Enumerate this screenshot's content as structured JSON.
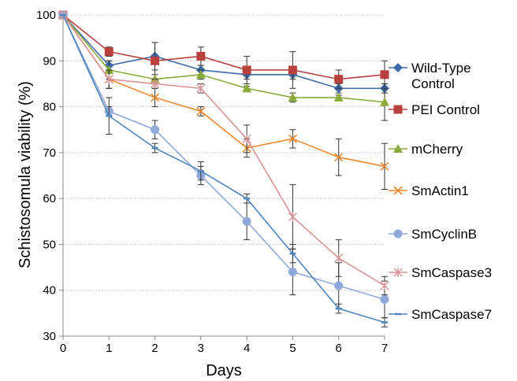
{
  "chart_data": {
    "type": "line",
    "title": "",
    "xlabel": "Days",
    "ylabel": "Schistosomula viability (%)",
    "x": [
      0,
      1,
      2,
      3,
      4,
      5,
      6,
      7
    ],
    "xlim": [
      0,
      7
    ],
    "ylim": [
      30,
      100
    ],
    "yticks": [
      30,
      40,
      50,
      60,
      70,
      80,
      90,
      100
    ],
    "grid": "horizontal dotted",
    "legend_position": "right",
    "series": [
      {
        "name": "Wild-Type Control",
        "color": "#3f6ba8",
        "marker": "diamond",
        "values": [
          100,
          89,
          91,
          88,
          87,
          87,
          84,
          84
        ],
        "errors": [
          0,
          1,
          3,
          1,
          1,
          1,
          1,
          1
        ]
      },
      {
        "name": "PEI Control",
        "color": "#b8413e",
        "marker": "square",
        "values": [
          100,
          92,
          90,
          91,
          88,
          88,
          86,
          87
        ],
        "errors": [
          0,
          1,
          4,
          2,
          3,
          4,
          2,
          3
        ]
      },
      {
        "name": "mCherry",
        "color": "#8aab3a",
        "marker": "triangle",
        "values": [
          100,
          88,
          86,
          87,
          84,
          82,
          82,
          81
        ],
        "errors": [
          0,
          2,
          1,
          1,
          0.5,
          1,
          0.5,
          4
        ]
      },
      {
        "name": "SmActin1",
        "color": "#e8892f",
        "marker": "x",
        "values": [
          100,
          86,
          82,
          79,
          71,
          73,
          69,
          67
        ],
        "errors": [
          0,
          2,
          2,
          1,
          2,
          2,
          4,
          5
        ]
      },
      {
        "name": "SmCyclinB",
        "color": "#8fa9d8",
        "marker": "circle",
        "values": [
          100,
          79,
          75,
          65,
          55,
          44,
          41,
          38
        ],
        "errors": [
          0,
          1,
          2,
          2,
          4,
          5,
          5,
          4
        ]
      },
      {
        "name": "SmCaspase3",
        "color": "#d99396",
        "marker": "asterisk",
        "values": [
          100,
          86,
          85,
          84,
          73,
          56,
          47,
          41
        ],
        "errors": [
          0,
          2,
          1,
          1,
          3,
          7,
          4,
          2
        ]
      },
      {
        "name": "SmCaspase7",
        "color": "#4f86c0",
        "marker": "dash",
        "values": [
          100,
          78,
          71,
          66,
          60,
          48,
          36,
          33
        ],
        "errors": [
          0,
          4,
          1,
          2,
          1,
          2,
          1,
          1
        ]
      }
    ],
    "legend_labels": [
      [
        "Wild-Type",
        "Control"
      ],
      [
        "PEI Control"
      ],
      [
        "mCherry"
      ],
      [
        "SmActin1"
      ],
      [
        "SmCyclinB"
      ],
      [
        "SmCaspase3"
      ],
      [
        "SmCaspase7"
      ]
    ]
  }
}
